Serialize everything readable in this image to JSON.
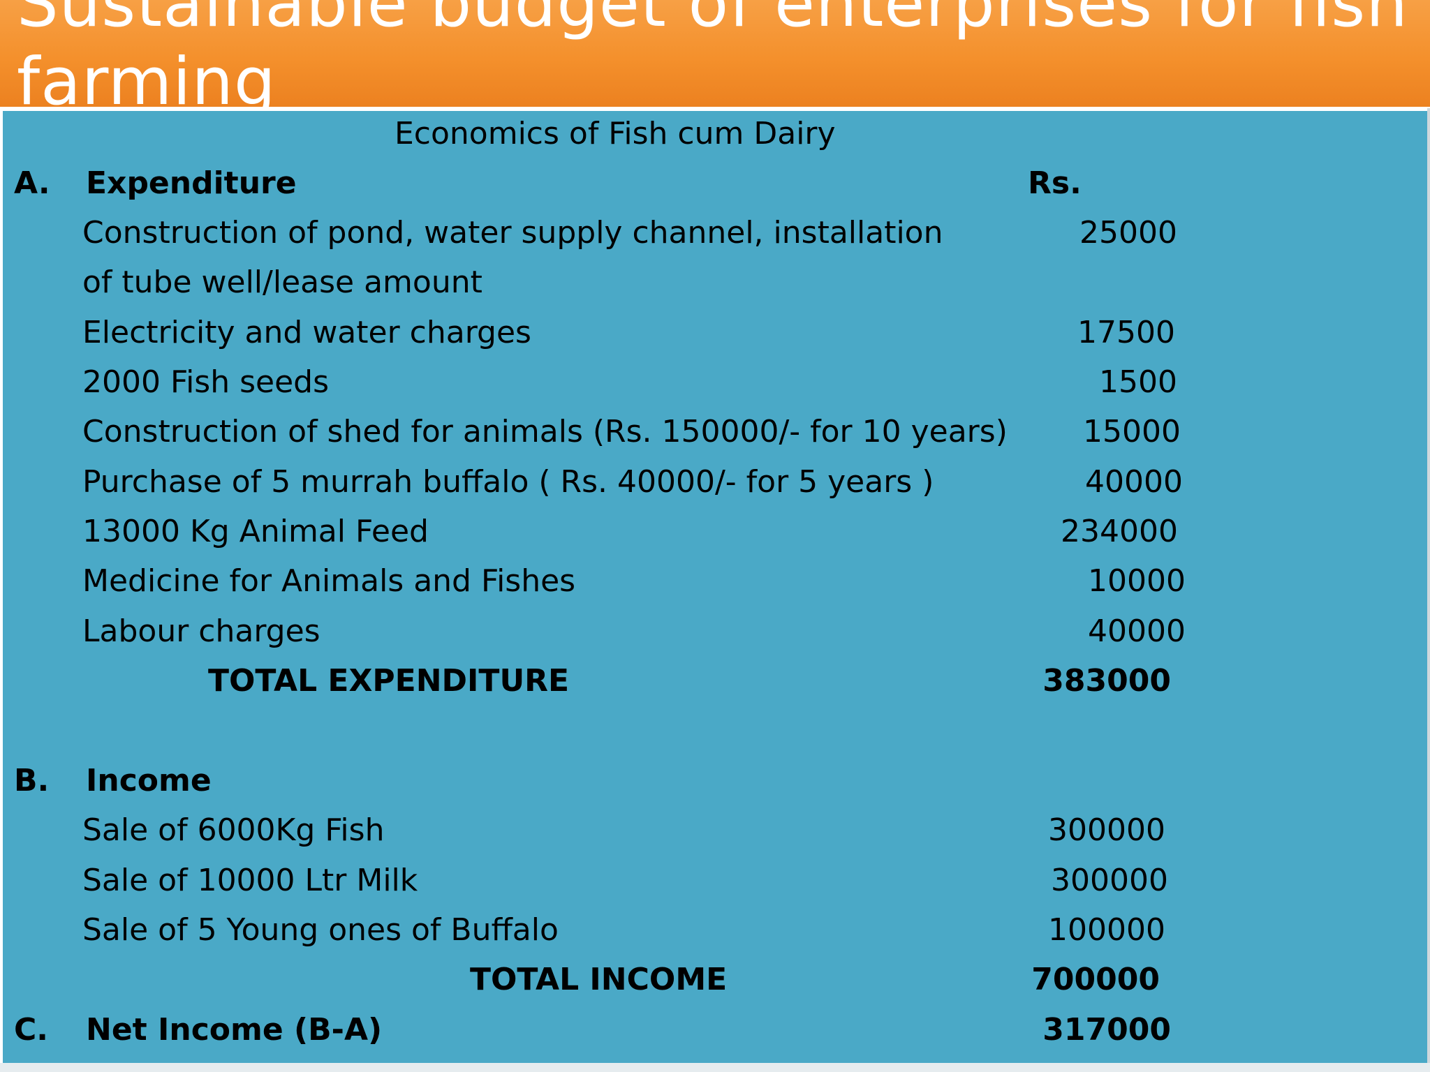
{
  "title": "Sustainable budget of enterprises for fish farming",
  "subtitle": "Economics of Fish cum Dairy",
  "section_a": {
    "letter": "A.",
    "heading": "Expenditure",
    "currency_header": "Rs.",
    "items": [
      {
        "label": "Construction of pond, water supply channel, installation",
        "label_line2": "of tube well/lease amount",
        "value": "25000"
      },
      {
        "label": "Electricity  and water charges",
        "value": "17500"
      },
      {
        "label": "2000 Fish seeds",
        "value": "1500"
      },
      {
        "label": "Construction of shed for animals (Rs. 150000/- for 10 years)",
        "value": "15000"
      },
      {
        "label": "Purchase of 5 murrah buffalo ( Rs. 40000/- for 5 years )",
        "value": "40000"
      },
      {
        "label": "13000 Kg Animal Feed",
        "value": "234000"
      },
      {
        "label": "Medicine for Animals and Fishes",
        "value": "10000"
      },
      {
        "label": "Labour charges",
        "value": "40000"
      }
    ],
    "total_label": "TOTAL EXPENDITURE",
    "total_value": "383000"
  },
  "section_b": {
    "letter": "B.",
    "heading": "Income",
    "items": [
      {
        "label": "Sale of 6000Kg Fish",
        "value": "300000"
      },
      {
        "label": "Sale of 10000 Ltr Milk",
        "value": "300000"
      },
      {
        "label": "Sale of 5 Young ones of Buffalo",
        "value": "100000"
      }
    ],
    "total_label": "TOTAL INCOME",
    "total_value": "700000"
  },
  "section_c": {
    "letter": "C.",
    "heading": "Net Income (B-A)",
    "value": "317000"
  },
  "colors": {
    "title_bar": "#f4902c",
    "panel": "#4aa9c7",
    "title_text": "#ffffff",
    "body_text": "#000000"
  }
}
